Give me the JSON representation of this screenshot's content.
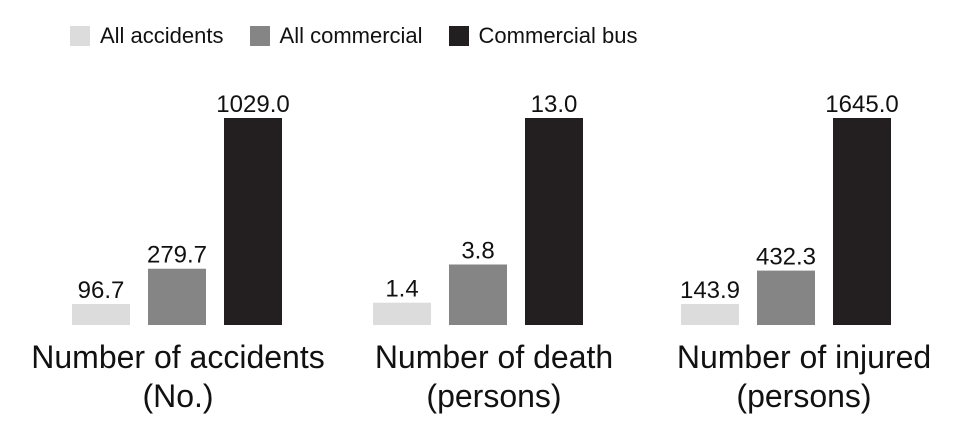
{
  "chart_data": {
    "type": "bar",
    "layout": "small-multiples",
    "title": "",
    "legend_position": "top-left",
    "grid": false,
    "series": [
      {
        "name": "All accidents",
        "color": "#dcdcdc"
      },
      {
        "name": "All commercial",
        "color": "#858585"
      },
      {
        "name": "Commercial bus",
        "color": "#231f20"
      }
    ],
    "panels": [
      {
        "category_lines": [
          "Number of accidents",
          "(No.)"
        ],
        "values": [
          96.7,
          279.7,
          1029.0
        ],
        "value_labels": [
          "96.7",
          "279.7",
          "1029.0"
        ]
      },
      {
        "category_lines": [
          "Number of death",
          "(persons)"
        ],
        "values": [
          1.4,
          3.8,
          13.0
        ],
        "value_labels": [
          "1.4",
          "3.8",
          "13.0"
        ]
      },
      {
        "category_lines": [
          "Number of injured",
          "(persons)"
        ],
        "values": [
          143.9,
          432.3,
          1645.0
        ],
        "value_labels": [
          "143.9",
          "432.3",
          "1645.0"
        ]
      }
    ]
  }
}
